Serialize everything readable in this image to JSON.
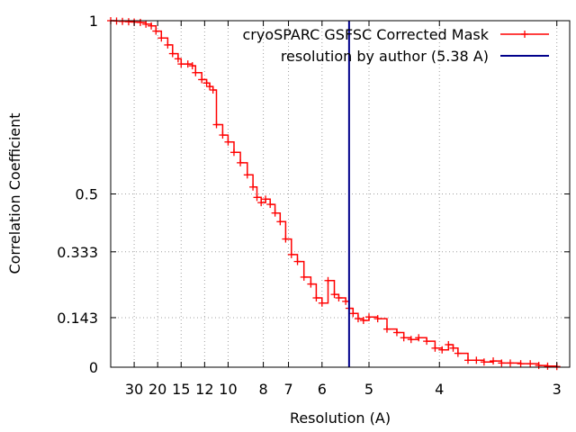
{
  "chart_data": {
    "type": "line",
    "x_scale": "reciprocal",
    "xlabel": "Resolution (A)",
    "ylabel": "Correlation Coefficient",
    "ylim": [
      0,
      1
    ],
    "xlim_resolution": [
      60,
      2.92
    ],
    "x_ticks": [
      30,
      20,
      15,
      12,
      10,
      8,
      7,
      6,
      5,
      4,
      3
    ],
    "y_ticks": [
      {
        "value": 0,
        "label": "0"
      },
      {
        "value": 0.143,
        "label": "0.143"
      },
      {
        "value": 0.333,
        "label": "0.333"
      },
      {
        "value": 0.5,
        "label": "0.5"
      },
      {
        "value": 1,
        "label": "1"
      }
    ],
    "grid": true,
    "legend_position": "top-right",
    "series": [
      {
        "name": "cryoSPARC GSFSC Corrected Mask",
        "color": "#ff0000",
        "marker": "plus",
        "points": [
          [
            60,
            1.0
          ],
          [
            48,
            0.999
          ],
          [
            40,
            0.998
          ],
          [
            34,
            0.997
          ],
          [
            30,
            0.996
          ],
          [
            26.5,
            0.995
          ],
          [
            24,
            0.99
          ],
          [
            22,
            0.985
          ],
          [
            20.5,
            0.97
          ],
          [
            19,
            0.95
          ],
          [
            17.5,
            0.93
          ],
          [
            16.5,
            0.905
          ],
          [
            15.5,
            0.89
          ],
          [
            15,
            0.875
          ],
          [
            14,
            0.875
          ],
          [
            13.4,
            0.87
          ],
          [
            13,
            0.85
          ],
          [
            12.3,
            0.83
          ],
          [
            11.8,
            0.82
          ],
          [
            11.5,
            0.81
          ],
          [
            11.2,
            0.8
          ],
          [
            10.9,
            0.7
          ],
          [
            10.4,
            0.67
          ],
          [
            10,
            0.65
          ],
          [
            9.6,
            0.62
          ],
          [
            9.2,
            0.59
          ],
          [
            8.8,
            0.555
          ],
          [
            8.5,
            0.52
          ],
          [
            8.3,
            0.49
          ],
          [
            8.1,
            0.475
          ],
          [
            7.9,
            0.485
          ],
          [
            7.7,
            0.47
          ],
          [
            7.5,
            0.445
          ],
          [
            7.3,
            0.42
          ],
          [
            7.1,
            0.37
          ],
          [
            6.9,
            0.325
          ],
          [
            6.7,
            0.305
          ],
          [
            6.5,
            0.26
          ],
          [
            6.3,
            0.24
          ],
          [
            6.15,
            0.2
          ],
          [
            6.0,
            0.185
          ],
          [
            5.85,
            0.25
          ],
          [
            5.7,
            0.21
          ],
          [
            5.6,
            0.2
          ],
          [
            5.45,
            0.19
          ],
          [
            5.38,
            0.17
          ],
          [
            5.3,
            0.155
          ],
          [
            5.2,
            0.14
          ],
          [
            5.1,
            0.135
          ],
          [
            5.0,
            0.145
          ],
          [
            4.85,
            0.14
          ],
          [
            4.7,
            0.11
          ],
          [
            4.55,
            0.1
          ],
          [
            4.45,
            0.085
          ],
          [
            4.35,
            0.08
          ],
          [
            4.25,
            0.085
          ],
          [
            4.15,
            0.075
          ],
          [
            4.05,
            0.055
          ],
          [
            3.97,
            0.05
          ],
          [
            3.9,
            0.065
          ],
          [
            3.85,
            0.055
          ],
          [
            3.8,
            0.04
          ],
          [
            3.7,
            0.02
          ],
          [
            3.62,
            0.02
          ],
          [
            3.55,
            0.015
          ],
          [
            3.47,
            0.018
          ],
          [
            3.4,
            0.012
          ],
          [
            3.33,
            0.012
          ],
          [
            3.25,
            0.01
          ],
          [
            3.18,
            0.01
          ],
          [
            3.12,
            0.005
          ],
          [
            3.06,
            0.003
          ],
          [
            3.0,
            0.002
          ]
        ]
      },
      {
        "name": "resolution by author (5.38 A)",
        "color": "#00008b",
        "marker": "none",
        "vertical_line_x": 5.38
      }
    ]
  }
}
